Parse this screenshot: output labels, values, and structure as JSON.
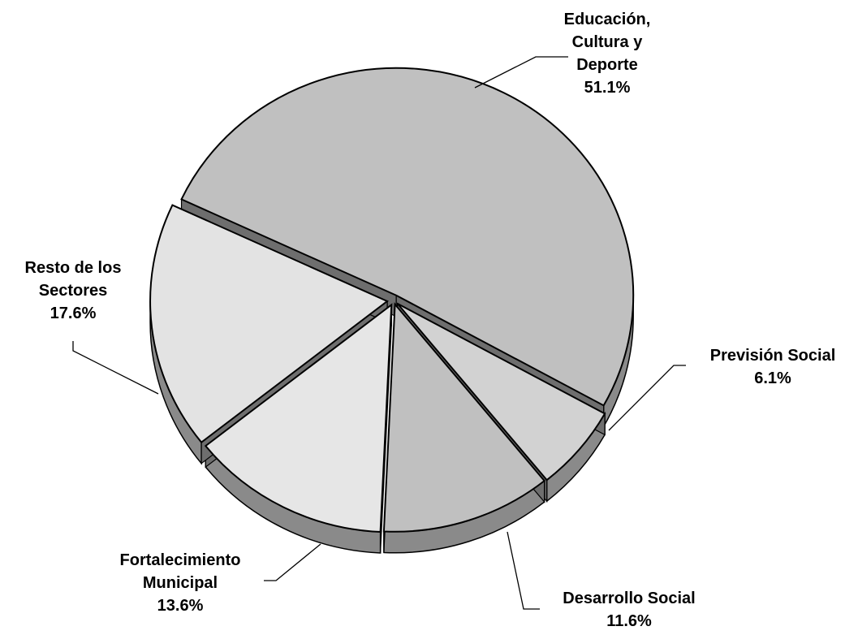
{
  "chart_data": {
    "type": "pie",
    "style": "3d-exploded",
    "slices": [
      {
        "label_lines": [
          "Educación,",
          "Cultura y",
          "Deporte"
        ],
        "value": 51.1,
        "value_label": "51.1%",
        "color": "#c0c0c0"
      },
      {
        "label_lines": [
          "Previsión Social"
        ],
        "value": 6.1,
        "value_label": "6.1%",
        "color": "#d2d2d2"
      },
      {
        "label_lines": [
          "Desarrollo Social"
        ],
        "value": 11.6,
        "value_label": "11.6%",
        "color": "#c0c0c0"
      },
      {
        "label_lines": [
          "Fortalecimiento",
          "Municipal"
        ],
        "value": 13.6,
        "value_label": "13.6%",
        "color": "#e6e6e6"
      },
      {
        "label_lines": [
          "Resto de los",
          "Sectores"
        ],
        "value": 17.6,
        "value_label": "17.6%",
        "color": "#e3e3e3"
      }
    ],
    "side_color": "#8a8a8a",
    "edge_color": "#000000"
  }
}
